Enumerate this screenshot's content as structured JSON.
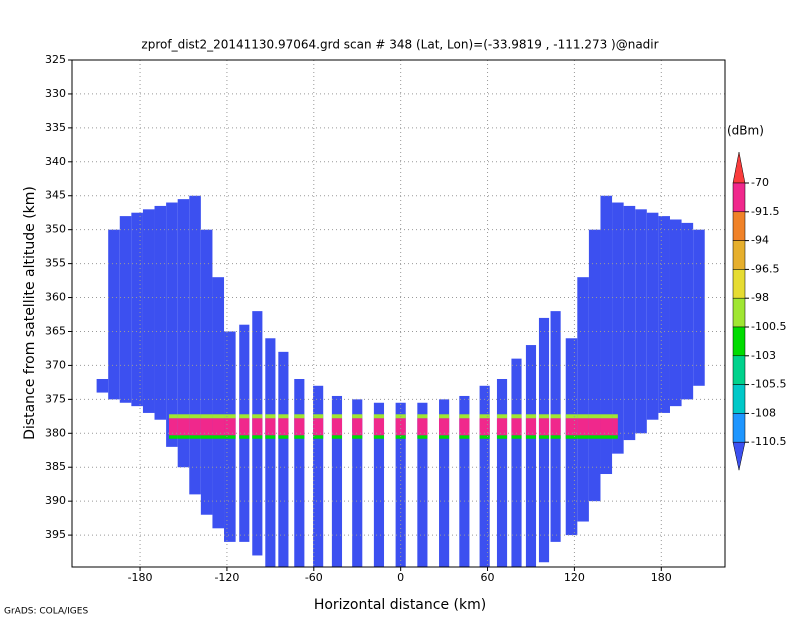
{
  "chart_data": {
    "type": "profile",
    "title": "zprof_dist2_20141130.97064.grd  scan # 348  (Lat, Lon)=(-33.9819 , -111.273 )@nadir",
    "xlabel": "Horizontal distance (km)",
    "ylabel": "Distance from satellite altitude (km)",
    "footer": "GrADS: COLA/IGES",
    "xlim": [
      -227,
      224
    ],
    "ylim": [
      325,
      399.7
    ],
    "y_inverted": true,
    "xticks": [
      -180,
      -120,
      -60,
      0,
      60,
      120,
      180
    ],
    "yticks": [
      325,
      330,
      335,
      340,
      345,
      350,
      355,
      360,
      365,
      370,
      375,
      380,
      385,
      390,
      395
    ],
    "grid": true,
    "background_dbm": -112,
    "strips": [
      {
        "x": -206,
        "width": 8,
        "top": 372,
        "bottom": 374
      },
      {
        "x": -198,
        "width": 8,
        "top": 350,
        "bottom": 375
      },
      {
        "x": -190,
        "width": 8,
        "top": 348,
        "bottom": 375.5
      },
      {
        "x": -182,
        "width": 8,
        "top": 347.5,
        "bottom": 376
      },
      {
        "x": -174,
        "width": 8,
        "top": 347,
        "bottom": 377
      },
      {
        "x": -166,
        "width": 8,
        "top": 346.5,
        "bottom": 378
      },
      {
        "x": -158,
        "width": 8,
        "top": 346,
        "bottom": 382
      },
      {
        "x": -150,
        "width": 8,
        "top": 345.5,
        "bottom": 385
      },
      {
        "x": -142,
        "width": 8,
        "top": 345,
        "bottom": 389
      },
      {
        "x": -134,
        "width": 8,
        "top": 350,
        "bottom": 392
      },
      {
        "x": -126,
        "width": 8,
        "top": 357,
        "bottom": 394
      },
      {
        "x": -118,
        "width": 8,
        "top": 365,
        "bottom": 396
      },
      {
        "x": -108,
        "width": 7,
        "top": 364,
        "bottom": 396
      },
      {
        "x": -99,
        "width": 7,
        "top": 362,
        "bottom": 398
      },
      {
        "x": -90,
        "width": 7,
        "top": 366,
        "bottom": 399.7
      },
      {
        "x": -81,
        "width": 7,
        "top": 368,
        "bottom": 399.7
      },
      {
        "x": -70,
        "width": 7,
        "top": 372,
        "bottom": 399.7
      },
      {
        "x": -57,
        "width": 7,
        "top": 373,
        "bottom": 399.7
      },
      {
        "x": -44,
        "width": 7,
        "top": 374.5,
        "bottom": 399.7
      },
      {
        "x": -30,
        "width": 7,
        "top": 375,
        "bottom": 399.7
      },
      {
        "x": -15,
        "width": 7,
        "top": 375.5,
        "bottom": 399.7
      },
      {
        "x": 0,
        "width": 7,
        "top": 375.5,
        "bottom": 399.7
      },
      {
        "x": 15,
        "width": 7,
        "top": 375.5,
        "bottom": 399.7
      },
      {
        "x": 30,
        "width": 7,
        "top": 375,
        "bottom": 399.7
      },
      {
        "x": 44,
        "width": 7,
        "top": 374.5,
        "bottom": 399.7
      },
      {
        "x": 58,
        "width": 7,
        "top": 373,
        "bottom": 399.7
      },
      {
        "x": 70,
        "width": 7,
        "top": 372,
        "bottom": 399.7
      },
      {
        "x": 80,
        "width": 7,
        "top": 369,
        "bottom": 399.7
      },
      {
        "x": 90,
        "width": 7,
        "top": 367,
        "bottom": 399.7
      },
      {
        "x": 99,
        "width": 7,
        "top": 363,
        "bottom": 399
      },
      {
        "x": 107,
        "width": 7,
        "top": 362,
        "bottom": 396
      },
      {
        "x": 118,
        "width": 8,
        "top": 366,
        "bottom": 395
      },
      {
        "x": 126,
        "width": 8,
        "top": 357,
        "bottom": 393
      },
      {
        "x": 134,
        "width": 8,
        "top": 350,
        "bottom": 390
      },
      {
        "x": 142,
        "width": 8,
        "top": 345,
        "bottom": 386
      },
      {
        "x": 150,
        "width": 8,
        "top": 346,
        "bottom": 383
      },
      {
        "x": 158,
        "width": 8,
        "top": 346.5,
        "bottom": 381
      },
      {
        "x": 166,
        "width": 8,
        "top": 347,
        "bottom": 380
      },
      {
        "x": 174,
        "width": 8,
        "top": 347.5,
        "bottom": 378
      },
      {
        "x": 182,
        "width": 8,
        "top": 348,
        "bottom": 377
      },
      {
        "x": 190,
        "width": 8,
        "top": 348.5,
        "bottom": 376
      },
      {
        "x": 198,
        "width": 8,
        "top": 349,
        "bottom": 375
      },
      {
        "x": 206,
        "width": 8,
        "top": 350,
        "bottom": 373
      }
    ],
    "surface": {
      "xmin": -160,
      "xmax": 150,
      "bands": [
        {
          "top": 377.2,
          "bottom": 377.8,
          "dbm": -100
        },
        {
          "top": 377.8,
          "bottom": 380.3,
          "dbm": -85
        },
        {
          "top": 380.3,
          "bottom": 380.8,
          "dbm": -101
        }
      ]
    },
    "colorbar": {
      "label": "(dBm)",
      "levels": [
        -70,
        -91.5,
        -94,
        -96.5,
        -98,
        -100.5,
        -103,
        -105.5,
        -108,
        -110.5
      ],
      "colors": [
        "#fa3c3c",
        "#f0288c",
        "#f08228",
        "#e6af2d",
        "#e6dc32",
        "#a0e632",
        "#00dc00",
        "#00d28c",
        "#00c8c8",
        "#1e96ff",
        "#3c50f0"
      ]
    }
  }
}
